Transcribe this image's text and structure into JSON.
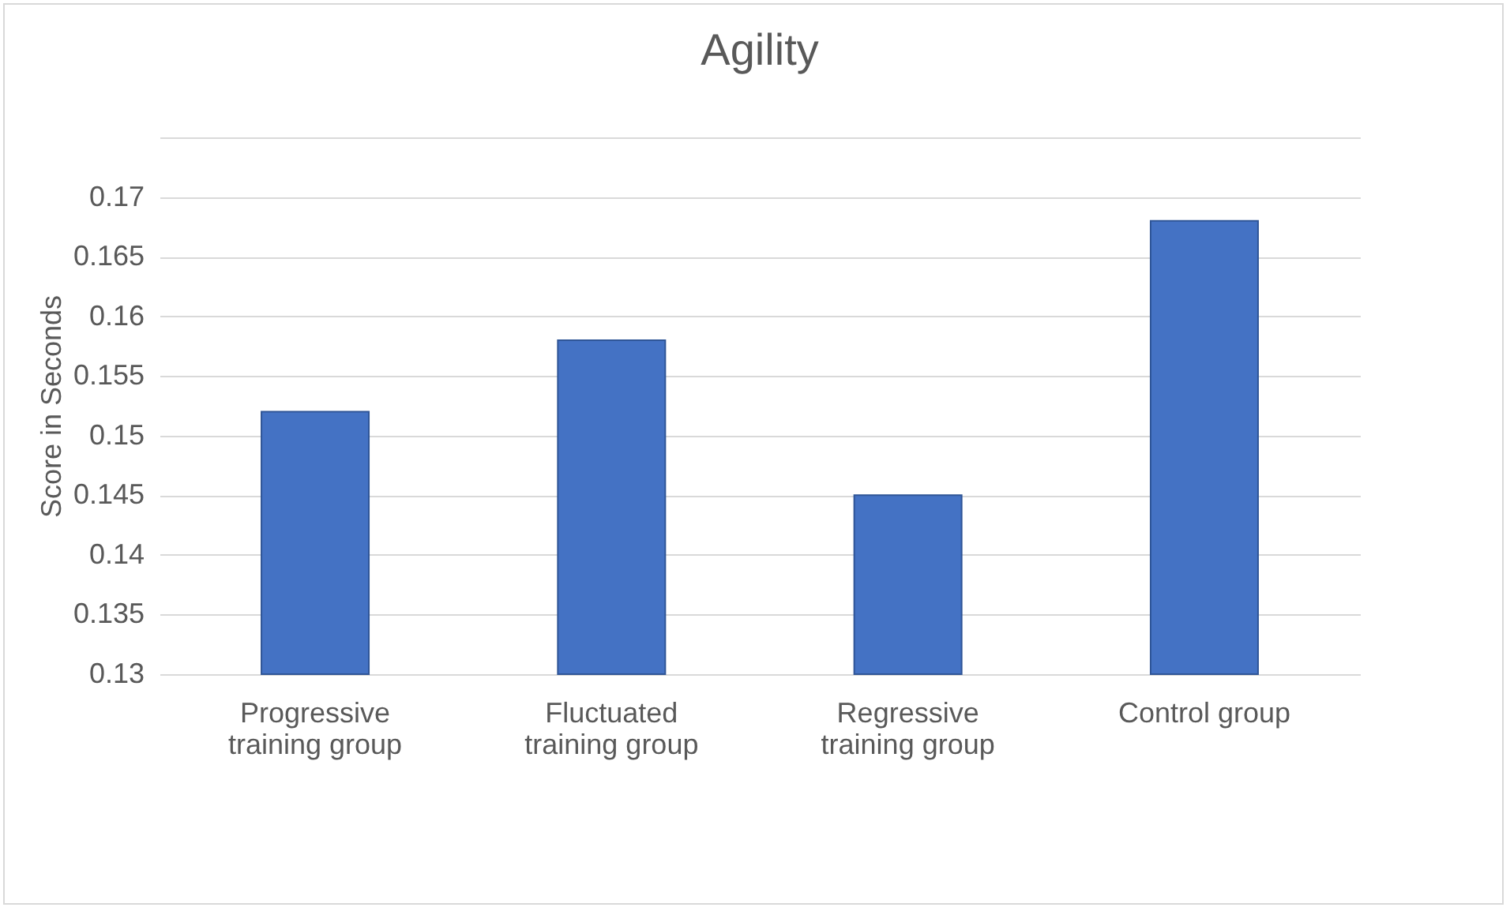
{
  "chart_data": {
    "type": "bar",
    "title": "Agility",
    "ylabel": "Score in Seconds",
    "categories": [
      "Progressive training group",
      "Fluctuated training group",
      "Regressive training group",
      "Control group"
    ],
    "values": [
      0.152,
      0.158,
      0.145,
      0.168
    ],
    "color": "#4472c4",
    "ylim": [
      0.13,
      0.175
    ],
    "yticks": [
      0.13,
      0.135,
      0.14,
      0.145,
      0.15,
      0.155,
      0.16,
      0.165,
      0.17,
      {
        "value": 0.175,
        "label": null
      }
    ],
    "grid": "y"
  }
}
